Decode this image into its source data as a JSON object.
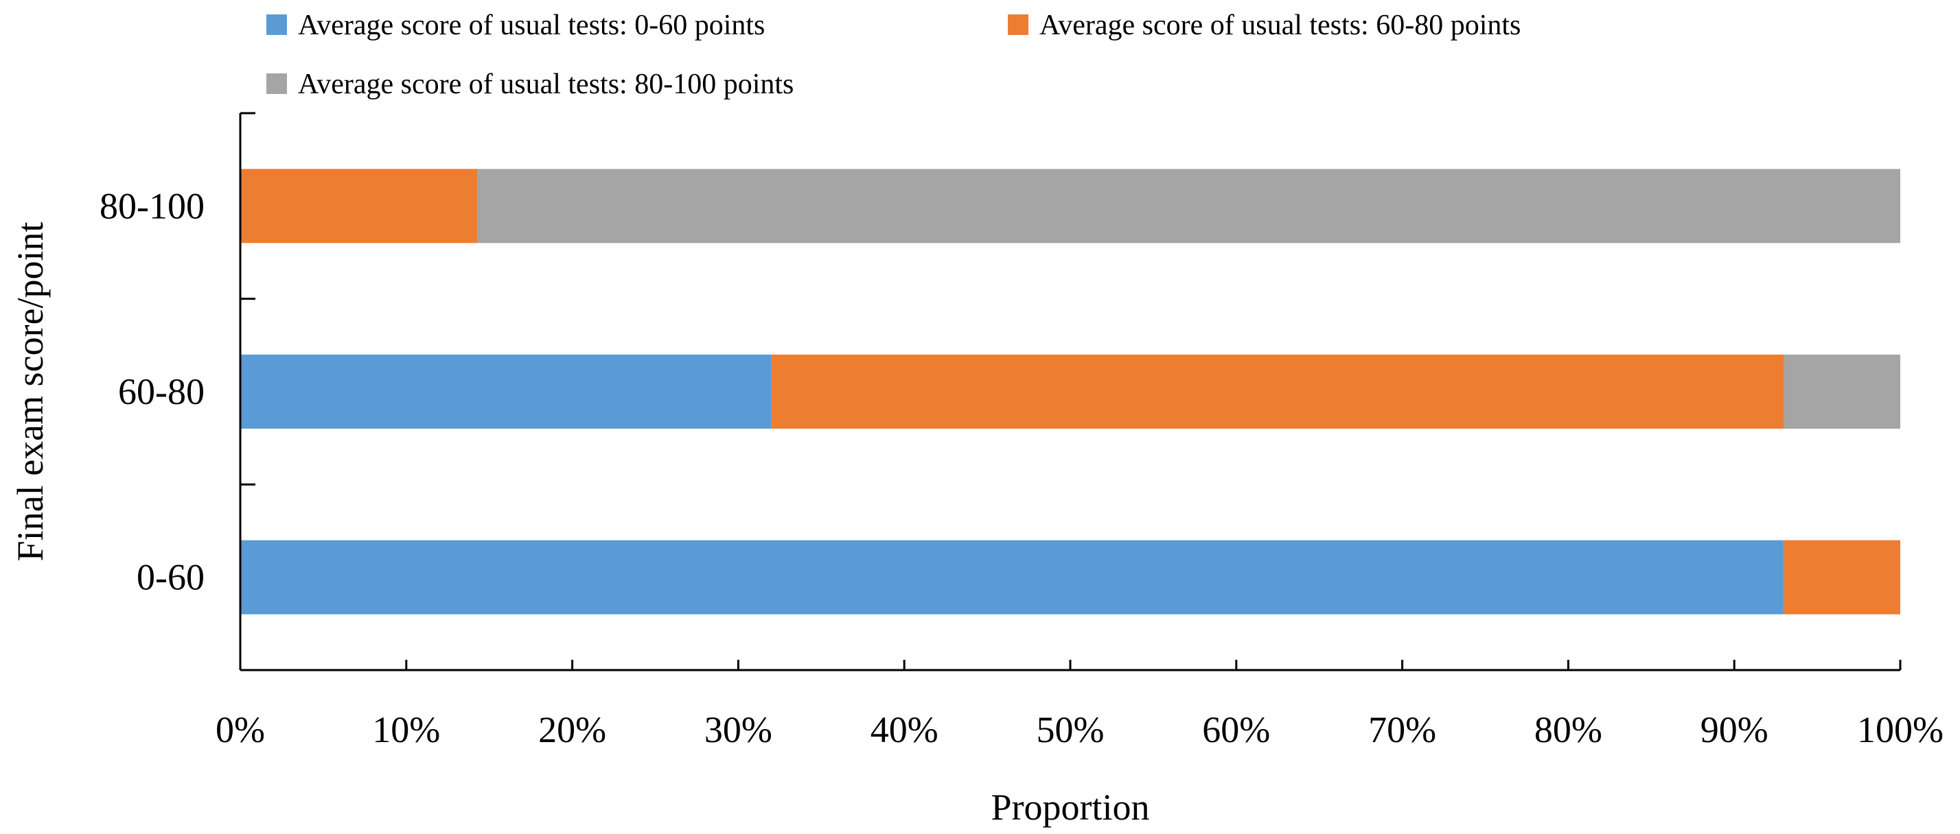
{
  "chart_data": {
    "type": "bar",
    "orientation": "horizontal",
    "stacked": true,
    "percent": true,
    "categories": [
      "0-60",
      "60-80",
      "80-100"
    ],
    "series": [
      {
        "name": "Average score of usual tests: 0-60 points",
        "color": "#5b9bd5",
        "values": [
          93,
          32,
          0
        ]
      },
      {
        "name": "Average score of usual tests: 60-80 points",
        "color": "#ed7d31",
        "values": [
          7,
          61,
          14.3
        ]
      },
      {
        "name": "Average score of usual tests: 80-100 points",
        "color": "#a5a5a5",
        "values": [
          0,
          7,
          85.7
        ]
      }
    ],
    "xlabel": "Proportion",
    "ylabel": "Final exam score/point",
    "xlim": [
      0,
      100
    ],
    "xticks": [
      "0%",
      "10%",
      "20%",
      "30%",
      "40%",
      "50%",
      "60%",
      "70%",
      "80%",
      "90%",
      "100%"
    ],
    "grid": false,
    "legend": "top"
  }
}
